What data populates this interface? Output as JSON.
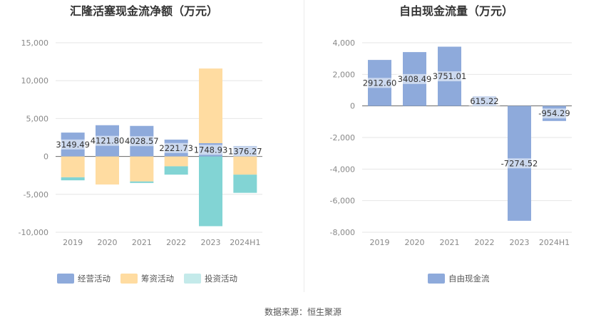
{
  "source_text": "数据来源：恒生聚源",
  "chart_data": [
    {
      "type": "bar",
      "stacked": true,
      "title": "汇隆活塞现金流净额（万元）",
      "categories": [
        "2019",
        "2020",
        "2021",
        "2022",
        "2023",
        "2024H1"
      ],
      "ylim": [
        -10000,
        15000
      ],
      "yticks": [
        15000,
        10000,
        5000,
        0,
        -5000,
        -10000
      ],
      "ytick_labels": [
        "15,000",
        "10,000",
        "5,000",
        "0",
        "-5,000",
        "-10,000"
      ],
      "grid": true,
      "legend_position": "bottom",
      "series": [
        {
          "name": "经营活动",
          "color": "#8eaadb",
          "values": [
            3149.49,
            4121.8,
            4028.57,
            2221.73,
            1748.93,
            1376.27
          ]
        },
        {
          "name": "筹资活动",
          "color": "#ffdca1",
          "values": [
            -2750,
            -3700,
            -3300,
            -1300,
            9850,
            -2400
          ]
        },
        {
          "name": "投资活动",
          "color": "#82d4d4",
          "values": [
            -400,
            0,
            -200,
            -1100,
            -9200,
            -2400
          ]
        }
      ],
      "data_labels": [
        "3149.49",
        "4121.80",
        "4028.57",
        "2221.73",
        "1748.93",
        "1376.27"
      ]
    },
    {
      "type": "bar",
      "title": "自由现金流量（万元）",
      "categories": [
        "2019",
        "2020",
        "2021",
        "2022",
        "2023",
        "2024H1"
      ],
      "ylim": [
        -8000,
        4000
      ],
      "yticks": [
        4000,
        2000,
        0,
        -2000,
        -4000,
        -6000,
        -8000
      ],
      "ytick_labels": [
        "4,000",
        "2,000",
        "0",
        "-2,000",
        "-4,000",
        "-6,000",
        "-8,000"
      ],
      "grid": true,
      "legend_position": "bottom",
      "series": [
        {
          "name": "自由现金流",
          "color": "#8eaadb",
          "values": [
            2912.6,
            3408.49,
            3751.01,
            615.22,
            -7274.52,
            -954.29
          ]
        }
      ],
      "data_labels": [
        "2912.60",
        "3408.49",
        "3751.01",
        "615.22",
        "-7274.52",
        "-954.29"
      ]
    }
  ]
}
